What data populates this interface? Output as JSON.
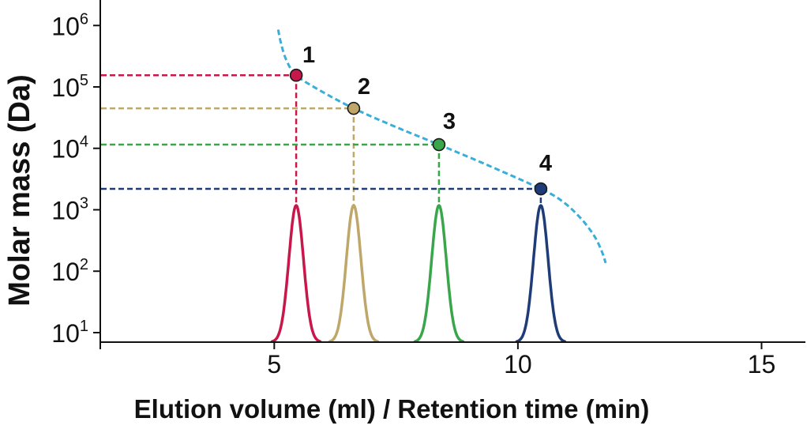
{
  "chart_data": {
    "type": "line",
    "title": "",
    "xlabel": "Elution volume (ml) / Retention time (min)",
    "ylabel": "Molar mass (Da)",
    "yscale": "log",
    "xlim": [
      1.43,
      15.9
    ],
    "ylim": [
      7,
      2600000
    ],
    "grid": false,
    "legend": "none",
    "x_ticks": [
      5,
      10,
      15
    ],
    "x_tick_labels": [
      "5",
      "10",
      "15"
    ],
    "y_ticks": [
      10,
      100,
      1000,
      10000,
      100000,
      1000000
    ],
    "y_tick_labels": [
      {
        "base": "10",
        "exp": "1"
      },
      {
        "base": "10",
        "exp": "2"
      },
      {
        "base": "10",
        "exp": "3"
      },
      {
        "base": "10",
        "exp": "4"
      },
      {
        "base": "10",
        "exp": "5"
      },
      {
        "base": "10",
        "exp": "6"
      }
    ],
    "calibration_curve": {
      "style": "dashed",
      "color": "#3aaed8",
      "x": [
        5.08,
        5.14,
        5.25,
        5.45,
        5.93,
        6.63,
        7.47,
        8.38,
        9.42,
        10.47,
        10.91,
        11.28,
        11.56,
        11.72,
        11.8
      ],
      "y": [
        855000,
        505000,
        272000,
        155000,
        88400,
        44700,
        22700,
        11500,
        5150,
        2190,
        1380,
        740,
        382,
        212,
        136
      ]
    },
    "points": [
      {
        "label": "1",
        "x": 5.45,
        "y": 155000,
        "color": "#c8174a"
      },
      {
        "label": "2",
        "x": 6.63,
        "y": 44700,
        "color": "#bfa76a"
      },
      {
        "label": "3",
        "x": 8.38,
        "y": 11500,
        "color": "#3aa64b"
      },
      {
        "label": "4",
        "x": 10.47,
        "y": 2190,
        "color": "#1f3c78"
      }
    ],
    "peaks": [
      {
        "x": 5.45,
        "color": "#c8174a"
      },
      {
        "x": 6.63,
        "color": "#bfa76a"
      },
      {
        "x": 8.38,
        "color": "#3aa64b"
      },
      {
        "x": 10.47,
        "color": "#1f3c78"
      }
    ]
  }
}
